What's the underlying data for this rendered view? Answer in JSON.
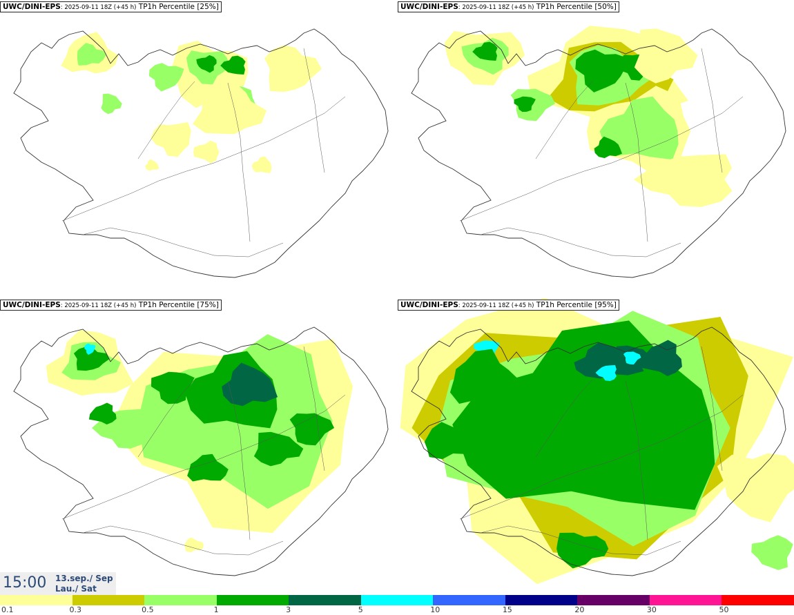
{
  "panels": [
    {
      "model": "UWC/DINI-EPS",
      "run": ": 2025-09-11 18Z (+45 h)",
      "variable": " TP1h Percentile [25%]",
      "level": 1
    },
    {
      "model": "UWC/DINI-EPS",
      "run": ": 2025-09-11 18Z (+45 h)",
      "variable": " TP1h Percentile [50%]",
      "level": 2
    },
    {
      "model": "UWC/DINI-EPS",
      "run": ": 2025-09-11 18Z (+45 h)",
      "variable": " TP1h Percentile [75%]",
      "level": 3
    },
    {
      "model": "UWC/DINI-EPS",
      "run": ": 2025-09-11 18Z (+45 h)",
      "variable": " TP1h Percentile [95%]",
      "level": 4
    }
  ],
  "valid_time": {
    "time": "15:00",
    "date_line": "13.sep./ Sep",
    "day_line": "Lau./ Sat"
  },
  "colorbar": {
    "colors": [
      "#ffff99",
      "#cccc00",
      "#99ff66",
      "#00aa00",
      "#006644",
      "#00ffff",
      "#3366ff",
      "#000088",
      "#660066",
      "#ff1493",
      "#ff0000"
    ],
    "labels": [
      "0.1",
      "0.3",
      "0.5",
      "1",
      "3",
      "5",
      "10",
      "15",
      "20",
      "30",
      "50"
    ]
  }
}
